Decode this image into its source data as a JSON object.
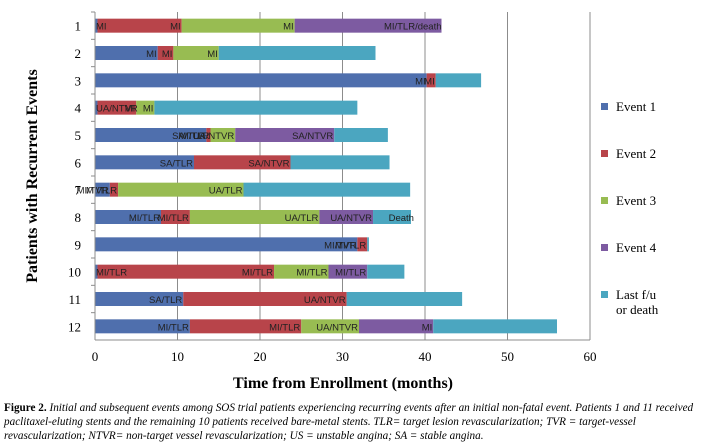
{
  "chart_data": {
    "type": "bar",
    "orientation": "horizontal-stacked",
    "ylabel": "Patients with Recurrent Events",
    "xlabel": "Time from Enrollment (months)",
    "xlim": [
      0,
      60
    ],
    "xticks": [
      0,
      10,
      20,
      30,
      40,
      50,
      60
    ],
    "grid": "vertical",
    "legend_position": "right",
    "colors": {
      "Event 1": "#4f6fad",
      "Event 2": "#b8444a",
      "Event 3": "#98bc52",
      "Event 4": "#7d5ba1",
      "Last f/u or death": "#4ba6c0"
    },
    "legend": [
      {
        "series": "Event 1",
        "label": "Event 1"
      },
      {
        "series": "Event 2",
        "label": "Event 2"
      },
      {
        "series": "Event 3",
        "label": "Event 3"
      },
      {
        "series": "Event 4",
        "label": "Event 4"
      },
      {
        "series": "Last f/u or death",
        "label": "Last f/u\nor death"
      }
    ],
    "patients": [
      {
        "id": "1",
        "segments": [
          {
            "series": "Event 1",
            "value": 0.3,
            "label": "MI"
          },
          {
            "series": "Event 2",
            "value": 10.5,
            "label": "MI"
          },
          {
            "series": "Event 3",
            "value": 24.2,
            "label": "MI"
          },
          {
            "series": "Event 4",
            "value": 42.0,
            "label": "MI/TLR/death"
          }
        ]
      },
      {
        "id": "2",
        "segments": [
          {
            "series": "Event 1",
            "value": 7.6,
            "label": "MI"
          },
          {
            "series": "Event 2",
            "value": 9.5,
            "label": "MI"
          },
          {
            "series": "Event 3",
            "value": 15.0,
            "label": "MI"
          },
          {
            "series": "Last f/u or death",
            "value": 34.0,
            "label": ""
          }
        ]
      },
      {
        "id": "3",
        "segments": [
          {
            "series": "Event 1",
            "value": 40.2,
            "label": "MI"
          },
          {
            "series": "Event 2",
            "value": 41.3,
            "label": "MI"
          },
          {
            "series": "Last f/u or death",
            "value": 46.8,
            "label": ""
          }
        ]
      },
      {
        "id": "4",
        "segments": [
          {
            "series": "Event 1",
            "value": 0.3,
            "label": "UA/NTVR"
          },
          {
            "series": "Event 2",
            "value": 5.0,
            "label": "MI"
          },
          {
            "series": "Event 3",
            "value": 7.2,
            "label": "MI"
          },
          {
            "series": "Last f/u or death",
            "value": 31.8,
            "label": ""
          }
        ]
      },
      {
        "id": "5",
        "segments": [
          {
            "series": "Event 1",
            "value": 13.5,
            "label": "SA/TLR"
          },
          {
            "series": "Event 2",
            "value": 14.0,
            "label": "MI/TLR"
          },
          {
            "series": "Event 3",
            "value": 17.0,
            "label": "UA/NTVR"
          },
          {
            "series": "Event 4",
            "value": 29.0,
            "label": "SA/NTVR"
          },
          {
            "series": "Last f/u or death",
            "value": 35.5,
            "label": ""
          }
        ]
      },
      {
        "id": "6",
        "segments": [
          {
            "series": "Event 1",
            "value": 12.0,
            "label": "SA/TLR"
          },
          {
            "series": "Event 2",
            "value": 23.7,
            "label": "SA/NTVR"
          },
          {
            "series": "Last f/u or death",
            "value": 35.7,
            "label": ""
          }
        ]
      },
      {
        "id": "7",
        "segments": [
          {
            "series": "Event 1",
            "value": 1.8,
            "label": "MI/TVR"
          },
          {
            "series": "Event 2",
            "value": 2.8,
            "label": "MI/TLR"
          },
          {
            "series": "Event 3",
            "value": 18.0,
            "label": "UA/TLR"
          },
          {
            "series": "Last f/u or death",
            "value": 38.2,
            "label": ""
          }
        ]
      },
      {
        "id": "8",
        "segments": [
          {
            "series": "Event 1",
            "value": 8.0,
            "label": "MI/TLR"
          },
          {
            "series": "Event 2",
            "value": 11.5,
            "label": "MI/TLR"
          },
          {
            "series": "Event 3",
            "value": 27.2,
            "label": "UA/TLR"
          },
          {
            "series": "Event 4",
            "value": 33.7,
            "label": "UA/NTVR"
          },
          {
            "series": "Last f/u or death",
            "value": 38.3,
            "label": "Death"
          }
        ]
      },
      {
        "id": "9",
        "segments": [
          {
            "series": "Event 1",
            "value": 31.8,
            "label": "MI/TVR"
          },
          {
            "series": "Event 2",
            "value": 33.0,
            "label": "MI/TLR"
          },
          {
            "series": "Last f/u or death",
            "value": 33.2,
            "label": ""
          }
        ]
      },
      {
        "id": "10",
        "segments": [
          {
            "series": "Event 1",
            "value": 0.3,
            "label": "MI/TLR"
          },
          {
            "series": "Event 2",
            "value": 21.7,
            "label": "MI/TLR"
          },
          {
            "series": "Event 3",
            "value": 28.3,
            "label": "MI/TLR"
          },
          {
            "series": "Event 4",
            "value": 33.0,
            "label": "MI/TLR"
          },
          {
            "series": "Last f/u or death",
            "value": 37.5,
            "label": ""
          }
        ]
      },
      {
        "id": "11",
        "segments": [
          {
            "series": "Event 1",
            "value": 10.7,
            "label": "SA/TLR"
          },
          {
            "series": "Event 2",
            "value": 30.5,
            "label": "UA/NTVR"
          },
          {
            "series": "Last f/u or death",
            "value": 44.5,
            "label": ""
          }
        ]
      },
      {
        "id": "12",
        "segments": [
          {
            "series": "Event 1",
            "value": 11.5,
            "label": "MI/TLR"
          },
          {
            "series": "Event 2",
            "value": 25.0,
            "label": "MI/TLR"
          },
          {
            "series": "Event 3",
            "value": 32.0,
            "label": "UA/NTVR"
          },
          {
            "series": "Event 4",
            "value": 41.0,
            "label": "MI"
          },
          {
            "series": "Last f/u or death",
            "value": 56.0,
            "label": ""
          }
        ]
      }
    ]
  },
  "caption": {
    "figure_label": "Figure 2.",
    "text": " Initial and subsequent events among SOS trial patients experiencing recurring events after an initial non-fatal event. Patients 1 and 11 received paclitaxel-eluting stents and the remaining 10 patients received bare-metal stents. TLR= target lesion revascularization; TVR = target-vessel revascularization; NTVR= non-target vessel revascularization; US = unstable angina; SA = stable angina."
  }
}
